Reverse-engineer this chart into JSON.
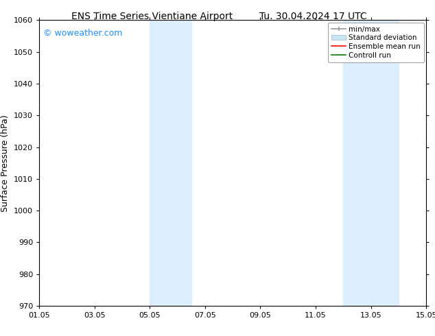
{
  "title_left": "ENS Time Series Vientiane Airport",
  "title_right": "Tu. 30.04.2024 17 UTC",
  "ylabel": "Surface Pressure (hPa)",
  "ylim": [
    970,
    1060
  ],
  "yticks": [
    970,
    980,
    990,
    1000,
    1010,
    1020,
    1030,
    1040,
    1050,
    1060
  ],
  "xtick_labels": [
    "01.05",
    "03.05",
    "05.05",
    "07.05",
    "09.05",
    "11.05",
    "13.05",
    "15.05"
  ],
  "xtick_positions": [
    0,
    2,
    4,
    6,
    8,
    10,
    12,
    14
  ],
  "x_total_days": 14,
  "shaded_bands": [
    {
      "x_start": 4.0,
      "x_end": 5.5
    },
    {
      "x_start": 11.0,
      "x_end": 12.5
    },
    {
      "x_start": 12.5,
      "x_end": 13.0
    }
  ],
  "shade_color": "#ddeeff",
  "background_color": "#ffffff",
  "watermark_text": "© woweather.com",
  "watermark_color": "#1e90ff",
  "tick_fontsize": 8,
  "title_fontsize": 10,
  "ylabel_fontsize": 9,
  "legend_fontsize": 7.5,
  "spine_color": "#000000"
}
